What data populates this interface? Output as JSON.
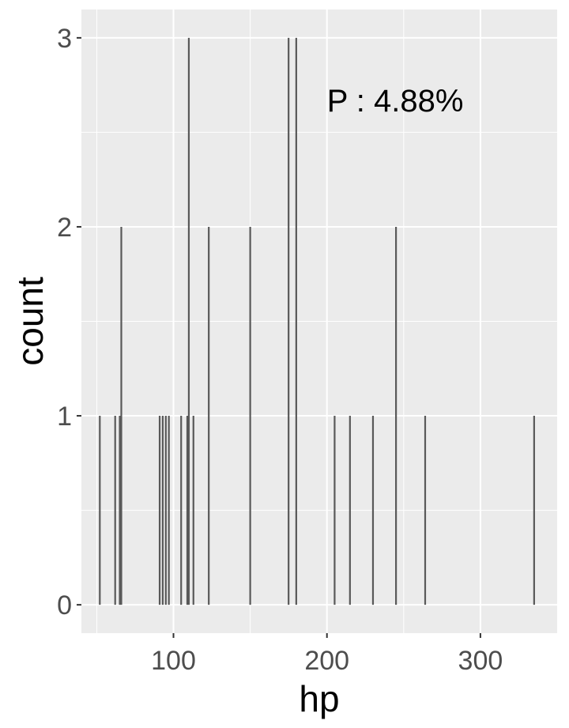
{
  "chart_data": {
    "type": "bar",
    "subtype": "count-histogram",
    "xlabel": "hp",
    "ylabel": "count",
    "xlim": [
      40,
      350
    ],
    "ylim": [
      -0.15,
      3.15
    ],
    "x_ticks": [
      100,
      200,
      300
    ],
    "y_ticks": [
      0,
      1,
      2,
      3
    ],
    "grid": true,
    "background": "#ebebeb",
    "bar_color": "#595959",
    "annotation": {
      "text": "P : 4.88%",
      "x": 200,
      "y": 2.67
    },
    "points": [
      {
        "hp": 52,
        "count": 1
      },
      {
        "hp": 62,
        "count": 1
      },
      {
        "hp": 65,
        "count": 1
      },
      {
        "hp": 66,
        "count": 2
      },
      {
        "hp": 91,
        "count": 1
      },
      {
        "hp": 93,
        "count": 1
      },
      {
        "hp": 95,
        "count": 1
      },
      {
        "hp": 97,
        "count": 1
      },
      {
        "hp": 105,
        "count": 1
      },
      {
        "hp": 109,
        "count": 1
      },
      {
        "hp": 110,
        "count": 3
      },
      {
        "hp": 113,
        "count": 1
      },
      {
        "hp": 123,
        "count": 2
      },
      {
        "hp": 150,
        "count": 2
      },
      {
        "hp": 175,
        "count": 3
      },
      {
        "hp": 180,
        "count": 3
      },
      {
        "hp": 205,
        "count": 1
      },
      {
        "hp": 215,
        "count": 1
      },
      {
        "hp": 230,
        "count": 1
      },
      {
        "hp": 245,
        "count": 2
      },
      {
        "hp": 264,
        "count": 1
      },
      {
        "hp": 335,
        "count": 1
      }
    ]
  }
}
